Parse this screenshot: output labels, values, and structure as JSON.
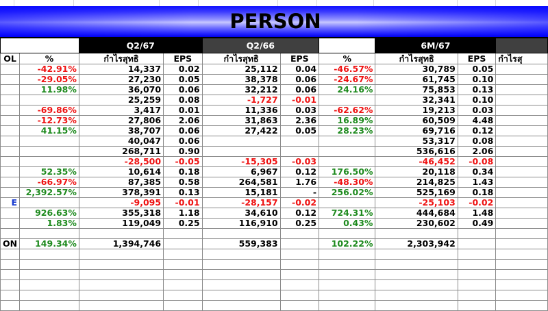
{
  "title": "PERSON",
  "periods": {
    "q2_67": "Q2/67",
    "q2_66": "Q2/66",
    "m6_67": "6M/67"
  },
  "column_headers": {
    "symbol": "OL",
    "pct1": "%",
    "profit1": "กำไรสุทธิ",
    "eps1": "EPS",
    "profit2": "กำไรสุทธิ",
    "eps2": "EPS",
    "pct2": "%",
    "profit3": "กำไรสุทธิ",
    "eps3": "EPS",
    "profit4": "กำไรสุ"
  },
  "colors": {
    "title_band": "#1010ff",
    "negative": "#ee1111",
    "positive": "#1e8a1e",
    "period_black": "#000000",
    "period_gray": "#404040"
  },
  "rows": [
    {
      "sym": "",
      "pct1": "-42.91%",
      "p1": "14,337",
      "e1": "0.02",
      "p2": "25,112",
      "e2": "0.04",
      "pct2": "-46.57%",
      "p3": "30,789",
      "e3": "0.05"
    },
    {
      "sym": "",
      "pct1": "-29.05%",
      "p1": "27,230",
      "e1": "0.05",
      "p2": "38,378",
      "e2": "0.06",
      "pct2": "-24.67%",
      "p3": "61,745",
      "e3": "0.10"
    },
    {
      "sym": "",
      "pct1": "11.98%",
      "p1": "36,070",
      "e1": "0.06",
      "p2": "32,212",
      "e2": "0.06",
      "pct2": "24.16%",
      "p3": "75,853",
      "e3": "0.13"
    },
    {
      "sym": "",
      "pct1": "",
      "p1": "25,259",
      "e1": "0.08",
      "p2": "-1,727",
      "e2": "-0.01",
      "pct2": "",
      "p3": "32,341",
      "e3": "0.10"
    },
    {
      "sym": "",
      "pct1": "-69.86%",
      "p1": "3,417",
      "e1": "0.01",
      "p2": "11,336",
      "e2": "0.03",
      "pct2": "-62.62%",
      "p3": "19,213",
      "e3": "0.03"
    },
    {
      "sym": "",
      "pct1": "-12.73%",
      "p1": "27,806",
      "e1": "2.06",
      "p2": "31,863",
      "e2": "2.36",
      "pct2": "16.89%",
      "p3": "60,509",
      "e3": "4.48"
    },
    {
      "sym": "",
      "pct1": "41.15%",
      "p1": "38,707",
      "e1": "0.06",
      "p2": "27,422",
      "e2": "0.05",
      "pct2": "28.23%",
      "p3": "69,716",
      "e3": "0.12"
    },
    {
      "sym": "",
      "pct1": "",
      "p1": "40,047",
      "e1": "0.06",
      "p2": "",
      "e2": "",
      "pct2": "",
      "p3": "53,317",
      "e3": "0.08"
    },
    {
      "sym": "",
      "pct1": "",
      "p1": "268,711",
      "e1": "0.90",
      "p2": "",
      "e2": "",
      "pct2": "",
      "p3": "536,616",
      "e3": "2.06"
    },
    {
      "sym": "",
      "pct1": "",
      "p1": "-28,500",
      "e1": "-0.05",
      "p2": "-15,305",
      "e2": "-0.03",
      "pct2": "",
      "p3": "-46,452",
      "e3": "-0.08"
    },
    {
      "sym": "",
      "pct1": "52.35%",
      "p1": "10,614",
      "e1": "0.18",
      "p2": "6,967",
      "e2": "0.12",
      "pct2": "176.50%",
      "p3": "20,118",
      "e3": "0.34"
    },
    {
      "sym": "",
      "pct1": "-66.97%",
      "p1": "87,385",
      "e1": "0.58",
      "p2": "264,581",
      "e2": "1.76",
      "pct2": "-48.30%",
      "p3": "214,825",
      "e3": "1.43"
    },
    {
      "sym": "",
      "pct1": "2,392.57%",
      "p1": "378,391",
      "e1": "0.13",
      "p2": "15,181",
      "e2": "-",
      "pct2": "256.02%",
      "p3": "525,169",
      "e3": "0.18"
    },
    {
      "sym": "E",
      "pct1": "",
      "p1": "-9,095",
      "e1": "-0.01",
      "p2": "-28,157",
      "e2": "-0.02",
      "pct2": "",
      "p3": "-25,103",
      "e3": "-0.02"
    },
    {
      "sym": "",
      "pct1": "926.63%",
      "p1": "355,318",
      "e1": "1.18",
      "p2": "34,610",
      "e2": "0.12",
      "pct2": "724.31%",
      "p3": "444,684",
      "e3": "1.48"
    },
    {
      "sym": "",
      "pct1": "1.83%",
      "p1": "119,049",
      "e1": "0.25",
      "p2": "116,910",
      "e2": "0.25",
      "pct2": "0.43%",
      "p3": "230,602",
      "e3": "0.49"
    },
    {
      "sym": "",
      "pct1": "",
      "p1": "",
      "e1": "",
      "p2": "",
      "e2": "",
      "pct2": "",
      "p3": "",
      "e3": ""
    },
    {
      "sym": "ON",
      "pct1": "149.34%",
      "p1": "1,394,746",
      "e1": "",
      "p2": "559,383",
      "e2": "",
      "pct2": "102.22%",
      "p3": "2,303,942",
      "e3": ""
    }
  ]
}
